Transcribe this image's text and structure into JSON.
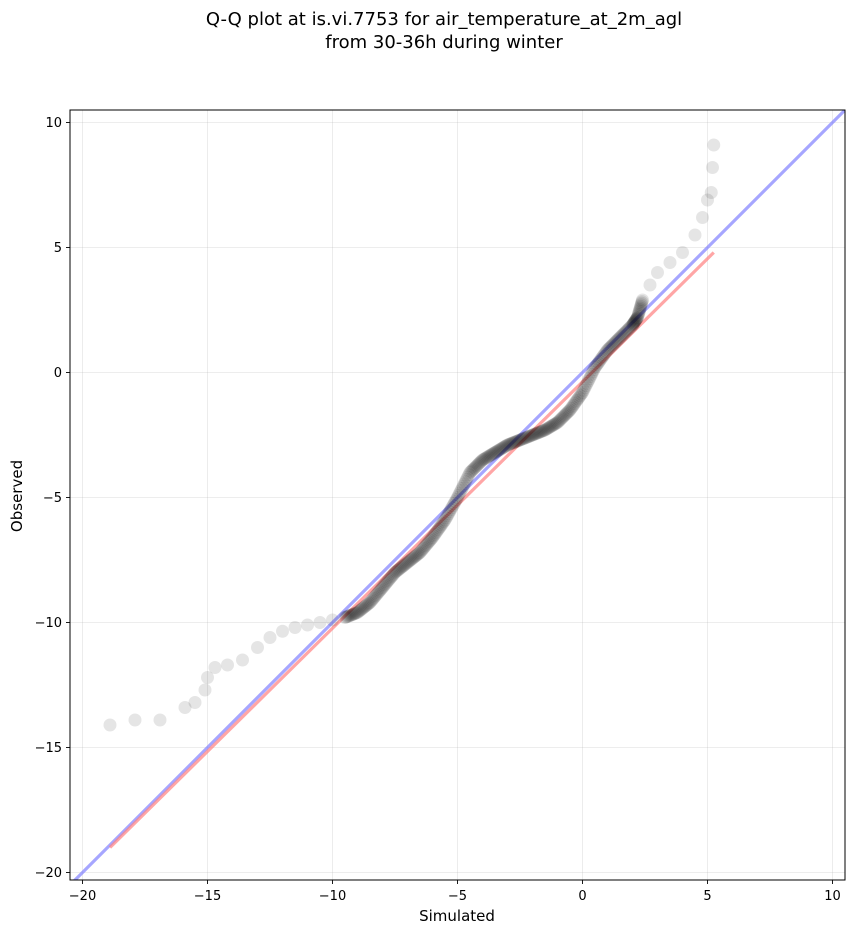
{
  "chart_data": {
    "type": "scatter",
    "title_lines": [
      "Q-Q plot at is.vi.7753 for air_temperature_at_2m_agl",
      "from 30-36h during winter"
    ],
    "xlabel": "Simulated",
    "ylabel": "Observed",
    "xlim": [
      -20.5,
      10.5
    ],
    "ylim": [
      -20.3,
      10.5
    ],
    "xticks": [
      -20,
      -15,
      -10,
      -5,
      0,
      5,
      10
    ],
    "yticks": [
      -20,
      -15,
      -10,
      -5,
      0,
      5,
      10
    ],
    "tick_labels_x": [
      "−20",
      "−15",
      "−10",
      "−5",
      "0",
      "5",
      "10"
    ],
    "tick_labels_y": [
      "−20",
      "−15",
      "−10",
      "−5",
      "0",
      "5",
      "10"
    ],
    "grid": true,
    "colors": {
      "points": "#000000",
      "identity_line": "#8080ff",
      "fit_line": "#ff8080",
      "core_band": "#0a0a66"
    },
    "points_profile": [
      {
        "x": -18.9,
        "y": -14.1
      },
      {
        "x": -17.9,
        "y": -13.9
      },
      {
        "x": -16.9,
        "y": -13.9
      },
      {
        "x": -15.9,
        "y": -13.4
      },
      {
        "x": -15.5,
        "y": -13.2
      },
      {
        "x": -15.1,
        "y": -12.7
      },
      {
        "x": -15.0,
        "y": -12.2
      },
      {
        "x": -14.7,
        "y": -11.8
      },
      {
        "x": -14.2,
        "y": -11.7
      },
      {
        "x": -13.6,
        "y": -11.5
      },
      {
        "x": -13.0,
        "y": -11.0
      },
      {
        "x": -12.5,
        "y": -10.6
      },
      {
        "x": -12.0,
        "y": -10.35
      },
      {
        "x": -11.5,
        "y": -10.2
      },
      {
        "x": -11.0,
        "y": -10.1
      },
      {
        "x": -10.5,
        "y": -10.0
      },
      {
        "x": -10.0,
        "y": -9.9
      },
      {
        "x": -9.5,
        "y": -9.8
      },
      {
        "x": -9.0,
        "y": -9.6
      },
      {
        "x": -8.5,
        "y": -9.2
      },
      {
        "x": -8.0,
        "y": -8.6
      },
      {
        "x": -7.5,
        "y": -8.0
      },
      {
        "x": -7.0,
        "y": -7.6
      },
      {
        "x": -6.5,
        "y": -7.2
      },
      {
        "x": -6.0,
        "y": -6.6
      },
      {
        "x": -5.5,
        "y": -5.9
      },
      {
        "x": -5.0,
        "y": -5.0
      },
      {
        "x": -4.5,
        "y": -4.0
      },
      {
        "x": -4.0,
        "y": -3.5
      },
      {
        "x": -3.5,
        "y": -3.2
      },
      {
        "x": -3.0,
        "y": -2.9
      },
      {
        "x": -2.5,
        "y": -2.7
      },
      {
        "x": -2.0,
        "y": -2.5
      },
      {
        "x": -1.5,
        "y": -2.3
      },
      {
        "x": -1.0,
        "y": -2.0
      },
      {
        "x": -0.5,
        "y": -1.5
      },
      {
        "x": 0.0,
        "y": -0.8
      },
      {
        "x": 0.5,
        "y": 0.2
      },
      {
        "x": 1.0,
        "y": 0.9
      },
      {
        "x": 1.5,
        "y": 1.4
      },
      {
        "x": 2.0,
        "y": 1.9
      },
      {
        "x": 2.2,
        "y": 2.2
      },
      {
        "x": 2.4,
        "y": 2.9
      },
      {
        "x": 2.7,
        "y": 3.5
      },
      {
        "x": 3.0,
        "y": 4.0
      },
      {
        "x": 3.5,
        "y": 4.4
      },
      {
        "x": 4.0,
        "y": 4.8
      },
      {
        "x": 4.5,
        "y": 5.5
      },
      {
        "x": 4.8,
        "y": 6.2
      },
      {
        "x": 5.0,
        "y": 6.9
      },
      {
        "x": 5.15,
        "y": 7.2
      },
      {
        "x": 5.2,
        "y": 8.2
      },
      {
        "x": 5.25,
        "y": 9.1
      }
    ],
    "reference_lines": [
      {
        "kind": "identity",
        "x": [
          -20.5,
          10.5
        ],
        "y": [
          -20.5,
          10.5
        ]
      },
      {
        "kind": "fit",
        "x": [
          -18.9,
          5.25
        ],
        "y": [
          -19.0,
          4.8
        ]
      }
    ]
  }
}
